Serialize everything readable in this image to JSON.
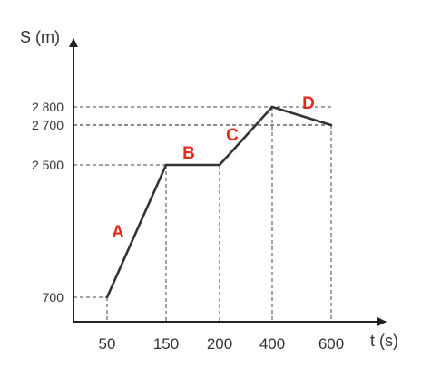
{
  "chart_data": {
    "type": "line",
    "xlabel": "t (s)",
    "ylabel": "S (m)",
    "x": [
      "50",
      "150",
      "200",
      "400",
      "600"
    ],
    "y": [
      700,
      2500,
      2500,
      2800,
      2700
    ],
    "y_ticks": [
      "700",
      "2 500",
      "2 700",
      "2 800"
    ],
    "segment_labels": [
      "A",
      "B",
      "C",
      "D"
    ],
    "guide_lines": "dashed",
    "grid": false,
    "colors": {
      "line": "#333333",
      "segment_label": "#e8281e",
      "guide": "#444444"
    }
  }
}
